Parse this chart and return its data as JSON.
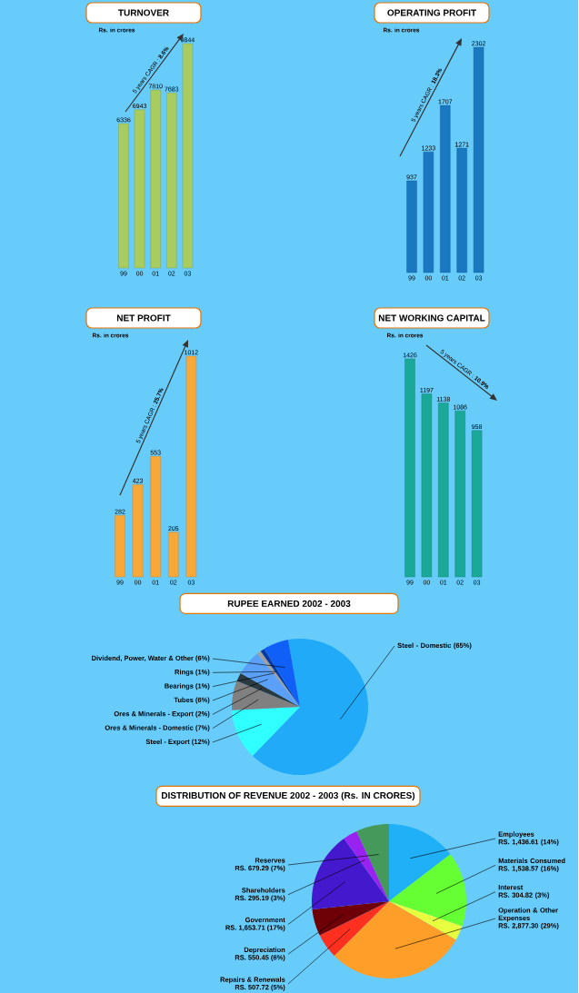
{
  "chart_data": [
    {
      "type": "bar",
      "title": "TURNOVER",
      "subtitle": "Rs. in crores",
      "categories": [
        "99",
        "00",
        "01",
        "02",
        "03"
      ],
      "values": [
        6336,
        6943,
        7810,
        7683,
        9844
      ],
      "color": "#a8cc60",
      "data_labels": true,
      "annotations": [
        "5 years CAGR : **8.6%**"
      ]
    },
    {
      "type": "bar",
      "title": "OPERATING PROFIT",
      "subtitle": "Rs. in crores",
      "categories": [
        "99",
        "00",
        "01",
        "02",
        "03"
      ],
      "values": [
        937,
        1233,
        1707,
        1271,
        2302
      ],
      "color": "#1a78c0",
      "data_labels": true,
      "annotations": [
        "5 years CAGR : **18.3%**"
      ]
    },
    {
      "type": "bar",
      "title": "NET PROFIT",
      "subtitle": "Rs. in crores",
      "categories": [
        "99",
        "00",
        "01",
        "02",
        "03"
      ],
      "values": [
        282,
        423,
        553,
        205,
        1012
      ],
      "color": "#f8a838",
      "data_labels": true,
      "annotations": [
        "5 years CAGR : **25.7%**"
      ]
    },
    {
      "type": "bar",
      "title": "NET WORKING CAPITAL",
      "subtitle": "Rs. in crores",
      "categories": [
        "99",
        "00",
        "01",
        "02",
        "03"
      ],
      "values": [
        1426,
        1197,
        1138,
        1086,
        958
      ],
      "color": "#1aa898",
      "data_labels": true,
      "annotations": [
        "5 years CAGR : **10.9%**"
      ]
    },
    {
      "type": "pie",
      "title": "RUPEE EARNED 2002 - 2003",
      "categories": [
        "Steel - Domestic",
        "Steel - Export",
        "Ores & Minerals - Domestic",
        "Ores & Minerals - Export",
        "Tubes",
        "Bearings",
        "Rings",
        "Dividend, Power, Water & Other"
      ],
      "values": [
        65,
        12,
        7,
        2,
        6,
        1,
        1,
        6
      ],
      "value_labels": [
        "(65%)",
        "(12%)",
        "(7%)",
        "(2%)",
        "(6%)",
        "(1%)",
        "(1%)",
        "(6%)"
      ],
      "colors": [
        "#20aaf8",
        "#30ffff",
        "#808080",
        "#2a3a40",
        "#5aa0f8",
        "#a0a0a0",
        "#0a3aa0",
        "#1060f8"
      ]
    },
    {
      "type": "pie",
      "title": "DISTRIBUTION OF REVENUE 2002 - 2003 (Rs. IN CRORES)",
      "categories": [
        "Employees",
        "Materials Consumed",
        "Interest",
        "Operation & Other Expenses",
        "Repairs & Renewals",
        "Depreciation",
        "Government",
        "Shareholders",
        "Reserves"
      ],
      "values": [
        1436.61,
        1538.57,
        304.82,
        2877.3,
        507.72,
        550.45,
        1653.71,
        295.19,
        679.29
      ],
      "value_labels": [
        "RS. 1,436.61 (14%)",
        "RS. 1,538.57 (16%)",
        "RS. 304.82 (3%)",
        "RS. 2,877.30 (29%)",
        "RS. 507.72 (5%)",
        "RS. 550.45 (6%)",
        "RS. 1,653.71 (17%)",
        "RS. 295.19 (3%)",
        "RS. 679.29 (7%)"
      ],
      "colors": [
        "#20b0f8",
        "#66ff33",
        "#e8ff40",
        "#ff9f2a",
        "#ff3020",
        "#6e0008",
        "#4418cc",
        "#9a22f0",
        "#45995a"
      ]
    }
  ]
}
